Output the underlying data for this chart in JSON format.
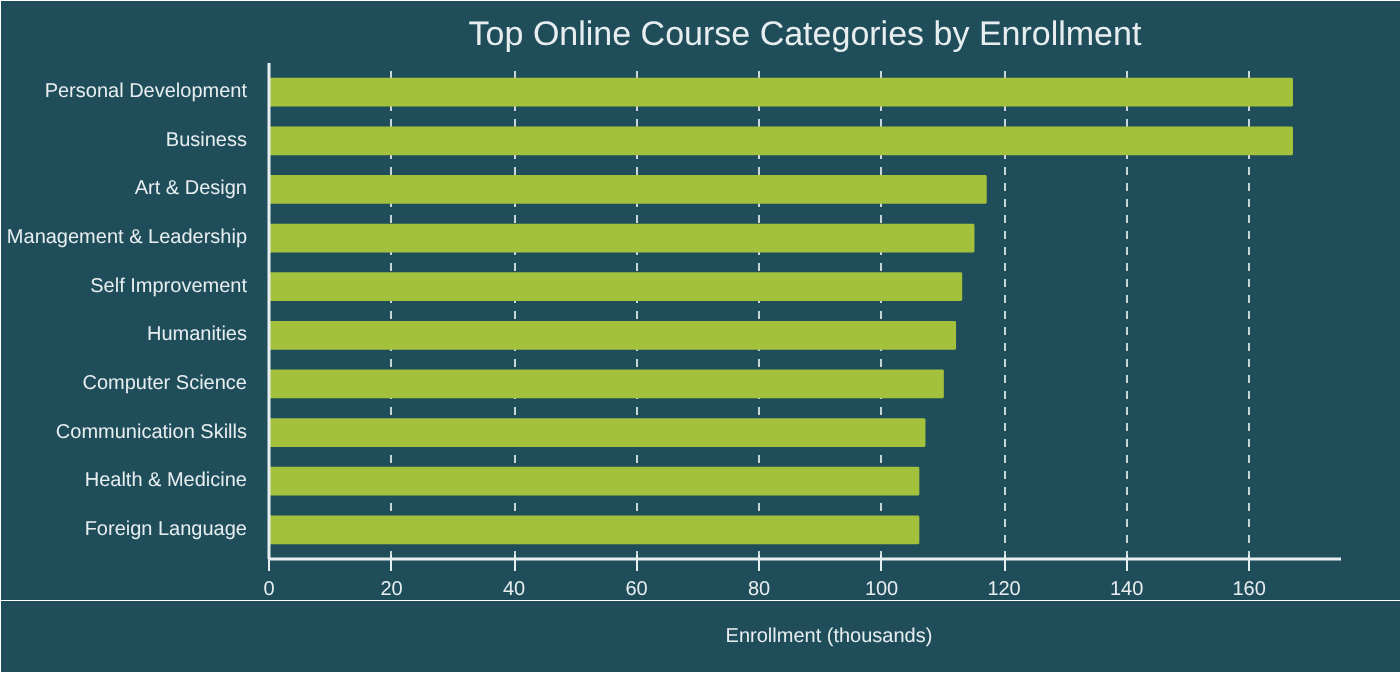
{
  "chart_data": {
    "type": "bar",
    "orientation": "horizontal",
    "title": "Top Online Course Categories by Enrollment",
    "categories": [
      "Personal Development",
      "Business",
      "Art & Design",
      "Management & Leadership",
      "Self Improvement",
      "Humanities",
      "Computer Science",
      "Communication Skills",
      "Health & Medicine",
      "Foreign Language"
    ],
    "series": [
      {
        "name": "Enrollment (thousands)",
        "color": "#a3c13d",
        "values": [
          167,
          167,
          117,
          115,
          113,
          112,
          110,
          107,
          106,
          106
        ]
      }
    ],
    "xlim": [
      0,
      175
    ],
    "xticks": [
      0,
      20,
      40,
      60,
      80,
      100,
      120,
      140,
      160
    ],
    "grid": "x",
    "legend": "bottom"
  }
}
